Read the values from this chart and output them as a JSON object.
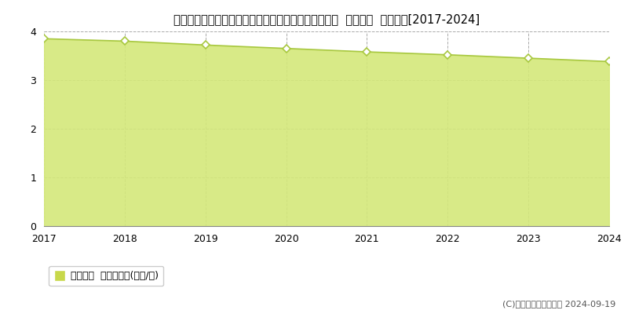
{
  "title": "栃木県塩谷郡塩谷町大字船生字向原２４９４番１０外  基準地価  地価推移[2017-2024]",
  "years": [
    2017,
    2018,
    2019,
    2020,
    2021,
    2022,
    2023,
    2024
  ],
  "values": [
    3.85,
    3.8,
    3.72,
    3.65,
    3.58,
    3.52,
    3.45,
    3.38
  ],
  "ylim": [
    0,
    4.0
  ],
  "yticks": [
    0,
    1,
    2,
    3,
    4
  ],
  "line_color": "#a8c840",
  "fill_color": "#d4e87a",
  "fill_alpha": 0.9,
  "marker_color": "#ffffff",
  "marker_edge_color": "#a8c840",
  "grid_color": "#aaaaaa",
  "background_color": "#ffffff",
  "legend_label": "基準地価  平均坪単価(万円/坪)",
  "legend_marker_color": "#c8d84a",
  "copyright_text": "(C)土地価格ドットコム 2024-09-19",
  "title_fontsize": 10.5,
  "tick_fontsize": 9,
  "legend_fontsize": 9,
  "copyright_fontsize": 8
}
